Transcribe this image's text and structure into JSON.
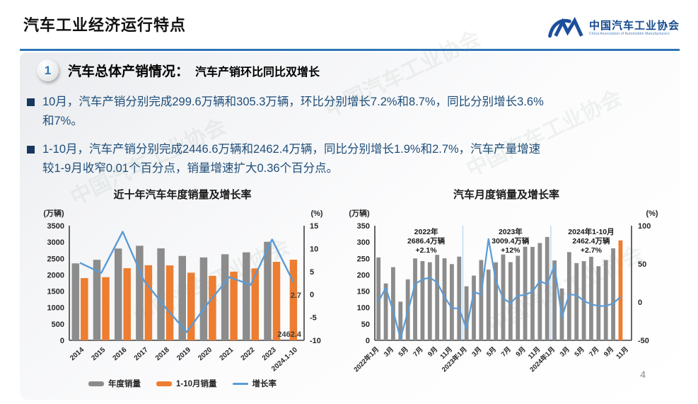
{
  "header": {
    "title": "汽车工业经济运行特点"
  },
  "logo": {
    "name": "中国汽车工业协会",
    "subtext": "China Association of Automobile Manufacturers",
    "mark_color": "#1c4f9c"
  },
  "section": {
    "number": "1",
    "title": "汽车总体产销情况：",
    "subtitle": "汽车产销环比同比双增长"
  },
  "bullets": [
    "10月，汽车产销分别完成299.6万辆和305.3万辆，环比分别增长7.2%和8.7%，同比分别增长3.6%\n和7%。",
    "1-10月，汽车产销分别完成2446.6万辆和2462.4万辆，同比分别增长1.9%和2.7%，汽车产量增速\n较1-9月收窄0.01个百分点，销量增速扩大0.36个百分点。"
  ],
  "watermark": "中国汽车工业协会",
  "page_number": "4",
  "colors": {
    "accent_blue": "#2E75B6",
    "body_text": "#1F4E79",
    "bar_gray": "#8C8C8C",
    "bar_orange": "#ED7D31",
    "line_blue": "#5B9BD5",
    "separator_blue": "#BDD7EE"
  },
  "chart_data": [
    {
      "type": "bar+line",
      "title": "近十年汽车年度销量及增长率",
      "left_axis_label": "(万辆)",
      "right_axis_label": "(%)",
      "left_range": [
        0,
        3500
      ],
      "right_range": [
        -10,
        15
      ],
      "left_ticks": [
        0,
        500,
        1000,
        1500,
        2000,
        2500,
        3000,
        3500
      ],
      "right_ticks": [
        -10,
        -5,
        0,
        5,
        10,
        15
      ],
      "categories": [
        "2014",
        "2015",
        "2016",
        "2017",
        "2018",
        "2019",
        "2020",
        "2021",
        "2022",
        "2023",
        "2024.1-10"
      ],
      "series": [
        {
          "name": "年度销量",
          "type": "bar",
          "color": "#8C8C8C",
          "values": [
            2349.2,
            2459.8,
            2802.8,
            2887.9,
            2808.1,
            2576.9,
            2531.1,
            2627.5,
            2686.4,
            3009.4,
            null
          ]
        },
        {
          "name": "1-10月销量",
          "type": "bar",
          "color": "#ED7D31",
          "values": [
            1900,
            1928,
            2202,
            2292,
            2287,
            2065,
            1970,
            2097,
            2197.5,
            2396.7,
            2462.4
          ]
        },
        {
          "name": "增长率",
          "type": "line",
          "color": "#5B9BD5",
          "axis": "right",
          "values": [
            6.9,
            4.7,
            13.7,
            3.0,
            -2.8,
            -8.2,
            -1.9,
            3.8,
            2.1,
            12.0,
            2.7
          ]
        }
      ],
      "annotations": [
        {
          "text": "2.7",
          "at": "growth_end"
        },
        {
          "text": "2462.4",
          "at": "last_bar_base"
        }
      ],
      "legend": [
        "年度销量",
        "1-10月销量",
        "增长率"
      ]
    },
    {
      "type": "bar+line",
      "title": "汽车月度销量及增长率",
      "left_axis_label": "(万辆)",
      "right_axis_label": "(%)",
      "left_range": [
        0,
        350
      ],
      "right_range": [
        -50,
        100
      ],
      "left_ticks": [
        0,
        50,
        100,
        150,
        200,
        250,
        300,
        350
      ],
      "right_ticks": [
        -50,
        0,
        50,
        100
      ],
      "slots": 35,
      "tick_labels": [
        "2022年1月",
        "3月",
        "5月",
        "7月",
        "9月",
        "11月",
        "2023年1月",
        "3月",
        "5月",
        "7月",
        "9月",
        "11月",
        "2024年1月",
        "3月",
        "5月",
        "7月",
        "9月",
        "11月"
      ],
      "tick_every": 2,
      "bar_color": "#8C8C8C",
      "last_bar_color": "#ED7D31",
      "line_color": "#5B9BD5",
      "separator_color": "#BDD7EE",
      "separators_after": [
        11,
        23
      ],
      "bar_values": [
        253.1,
        173.7,
        223.4,
        118.1,
        186.2,
        250.2,
        242.0,
        238.3,
        261.0,
        250.5,
        232.8,
        255.6,
        164.9,
        197.6,
        245.1,
        215.9,
        238.2,
        262.2,
        238.8,
        258.2,
        285.8,
        285.3,
        297.0,
        315.6,
        243.9,
        158.4,
        269.4,
        235.9,
        241.7,
        255.2,
        226.2,
        245.3,
        280.9,
        305.3
      ],
      "growth_values": [
        0.9,
        18.7,
        -11.7,
        -47.6,
        -12.6,
        23.8,
        29.7,
        32.1,
        25.7,
        6.9,
        -7.9,
        -8.4,
        -35.0,
        13.5,
        9.7,
        82.7,
        27.9,
        4.8,
        -1.4,
        8.4,
        9.5,
        13.8,
        27.4,
        23.5,
        47.9,
        -19.9,
        9.9,
        9.3,
        1.5,
        -2.7,
        -5.2,
        -5.0,
        -1.7,
        7.0
      ],
      "annotations": [
        {
          "lines": [
            "2022年",
            "2686.4万辆",
            "+2.1%"
          ],
          "slot": 6.5
        },
        {
          "lines": [
            "2023年",
            "3009.4万辆",
            "+12%"
          ],
          "slot": 18
        },
        {
          "lines": [
            "2024年1-10月",
            "2462.4万辆",
            "+2.7%"
          ],
          "slot": 29
        }
      ]
    }
  ]
}
